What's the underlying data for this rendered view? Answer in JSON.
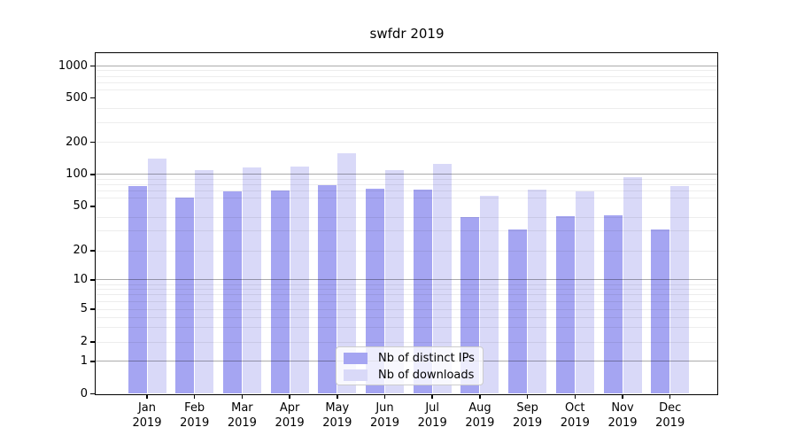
{
  "chart_data": {
    "type": "bar",
    "title": "swfdr 2019",
    "yscale": "symlog",
    "ylim": [
      0,
      1300
    ],
    "grid": true,
    "yticks": [
      0,
      1,
      2,
      5,
      10,
      20,
      50,
      100,
      200,
      500,
      1000
    ],
    "major_grid_at": [
      1,
      10,
      100,
      1000
    ],
    "minor_grid_at": [
      2,
      3,
      4,
      5,
      6,
      7,
      8,
      9,
      20,
      30,
      40,
      60,
      70,
      80,
      90,
      200,
      300,
      400,
      600,
      700,
      800,
      900
    ],
    "x_tick_months": [
      "Jan",
      "Feb",
      "Mar",
      "Apr",
      "May",
      "Jun",
      "Jul",
      "Aug",
      "Sep",
      "Oct",
      "Nov",
      "Dec"
    ],
    "x_tick_year": "2019",
    "series": [
      {
        "name": "Nb of distinct IPs",
        "color": "#a5a5f2",
        "values": [
          78,
          61,
          70,
          71,
          79,
          74,
          72,
          40,
          31,
          41,
          42,
          31
        ]
      },
      {
        "name": "Nb of downloads",
        "color": "#d9d9f8",
        "values": [
          140,
          110,
          116,
          118,
          159,
          111,
          126,
          63,
          72,
          69,
          94,
          78
        ]
      }
    ],
    "legend_position": "lower center",
    "colors": {
      "axis": "#000000",
      "major_grid": "#b0b0b0",
      "minor_grid": "#ececec",
      "background": "#ffffff"
    }
  }
}
